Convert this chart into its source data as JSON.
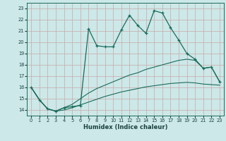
{
  "xlabel": "Humidex (Indice chaleur)",
  "background_color": "#cce8e8",
  "grid_color": "#c8a8a8",
  "line_color": "#1a6b5a",
  "xlim": [
    -0.5,
    23.5
  ],
  "ylim": [
    13.5,
    23.5
  ],
  "yticks": [
    14,
    15,
    16,
    17,
    18,
    19,
    20,
    21,
    22,
    23
  ],
  "xticks": [
    0,
    1,
    2,
    3,
    4,
    5,
    6,
    7,
    8,
    9,
    10,
    11,
    12,
    13,
    14,
    15,
    16,
    17,
    18,
    19,
    20,
    21,
    22,
    23
  ],
  "series1_x": [
    0,
    1,
    2,
    3,
    4,
    5,
    6,
    7,
    8,
    9,
    10,
    11,
    12,
    13,
    14,
    15,
    16,
    17,
    18,
    19,
    20,
    21,
    22,
    23
  ],
  "series1_y": [
    16.0,
    14.9,
    14.1,
    13.9,
    14.2,
    14.3,
    14.4,
    21.2,
    19.7,
    19.6,
    19.6,
    21.1,
    22.4,
    21.5,
    20.8,
    22.8,
    22.6,
    21.3,
    20.2,
    19.0,
    18.5,
    17.7,
    17.8,
    16.5
  ],
  "series2_x": [
    0,
    1,
    2,
    3,
    4,
    5,
    6,
    7,
    8,
    9,
    10,
    11,
    12,
    13,
    14,
    15,
    16,
    17,
    18,
    19,
    20,
    21,
    22,
    23
  ],
  "series2_y": [
    16.0,
    14.9,
    14.1,
    13.9,
    14.2,
    14.5,
    15.0,
    15.5,
    15.9,
    16.2,
    16.5,
    16.8,
    17.1,
    17.3,
    17.6,
    17.8,
    18.0,
    18.2,
    18.4,
    18.5,
    18.4,
    17.7,
    17.8,
    16.5
  ],
  "series3_x": [
    0,
    1,
    2,
    3,
    4,
    5,
    6,
    7,
    8,
    9,
    10,
    11,
    12,
    13,
    14,
    15,
    16,
    17,
    18,
    19,
    20,
    21,
    22,
    23
  ],
  "series3_y": [
    16.0,
    14.9,
    14.1,
    13.9,
    14.0,
    14.2,
    14.45,
    14.7,
    14.95,
    15.2,
    15.4,
    15.6,
    15.75,
    15.9,
    16.05,
    16.15,
    16.25,
    16.35,
    16.4,
    16.45,
    16.4,
    16.3,
    16.25,
    16.2
  ]
}
